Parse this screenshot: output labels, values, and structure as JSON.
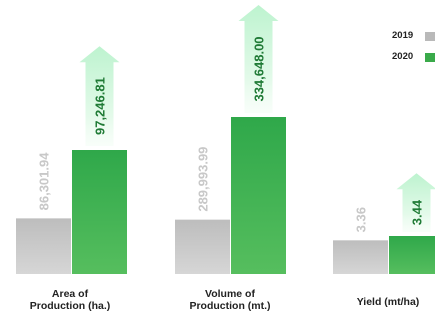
{
  "chart_data": {
    "type": "bar",
    "title": "",
    "legend": {
      "placement": "top-right"
    },
    "categories": [
      {
        "label": "Area of\nProduction (ha.)"
      },
      {
        "label": "Volume of\nProduction (mt.)"
      },
      {
        "label": "Yield (mt/ha)"
      }
    ],
    "series": [
      {
        "name": "2019",
        "color": "#b9b9b9",
        "values": [
          86301.94,
          289993.99,
          3.36
        ],
        "labels": [
          "86,301.94",
          "289,993.99",
          "3.36"
        ]
      },
      {
        "name": "2020",
        "color": "#3aaa4a",
        "values": [
          97246.81,
          334648.0,
          3.44
        ],
        "labels": [
          "97,246.81",
          "334,648.00",
          "3.44"
        ]
      }
    ],
    "grid": false
  }
}
